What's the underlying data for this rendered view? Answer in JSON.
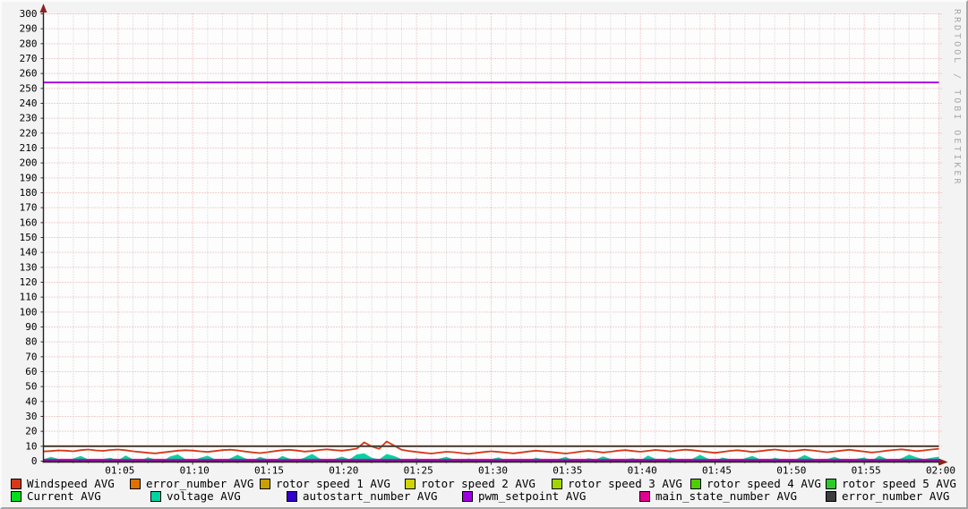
{
  "watermark": "RRDTOOL / TOBI OETIKER",
  "colors": {
    "back": "#f3f3f3",
    "canvas": "#fdfdfd",
    "grid_major": "#e79f9f",
    "grid_minor": "#c9c9c9",
    "axis": "#222222",
    "arrow": "#8c2222",
    "tick_major": "#333333",
    "tick_minor": "#8a8a8a",
    "label_text": "#000000",
    "watermark_text": "#a8a8a8"
  },
  "chart_data": {
    "type": "line",
    "title": "",
    "xlabel": "",
    "ylabel": "",
    "x_axis": {
      "start": "01:00",
      "end": "02:00",
      "major_tick_minutes": 5,
      "minor_tick_minutes": 1,
      "tick_labels": [
        "01:05",
        "01:10",
        "01:15",
        "01:20",
        "01:25",
        "01:30",
        "01:35",
        "01:40",
        "01:45",
        "01:50",
        "01:55",
        "02:00"
      ]
    },
    "y_axis": {
      "min": 0,
      "max": 300,
      "step": 10
    },
    "grid": true,
    "legend_position": "bottom",
    "legend_rows": [
      [
        0,
        1,
        2,
        3,
        4,
        5,
        6
      ],
      [
        7,
        8,
        9,
        10,
        11,
        12
      ]
    ],
    "series": [
      {
        "name": "Windspeed AVG",
        "color": "#d43a17",
        "type": "line",
        "values": [
          6.5,
          6.8,
          7.2,
          7.0,
          6.6,
          7.4,
          7.8,
          7.2,
          6.9,
          7.5,
          7.8,
          7.3,
          6.6,
          6.1,
          5.6,
          5.2,
          5.8,
          6.4,
          7.0,
          7.3,
          7.1,
          6.6,
          6.2,
          6.8,
          7.4,
          7.7,
          7.2,
          6.5,
          5.9,
          5.4,
          6.0,
          6.7,
          7.3,
          7.6,
          7.1,
          6.4,
          6.8,
          7.5,
          7.9,
          7.4,
          7.0,
          7.6,
          8.4,
          12.6,
          9.8,
          8.2,
          13.2,
          10.4,
          7.6,
          6.8,
          6.2,
          5.6,
          5.1,
          5.7,
          6.3,
          6.0,
          5.4,
          4.9,
          5.5,
          6.1,
          6.6,
          6.2,
          5.7,
          5.2,
          5.8,
          6.5,
          7.0,
          6.6,
          6.1,
          5.6,
          5.1,
          5.7,
          6.4,
          6.9,
          6.4,
          5.8,
          6.3,
          7.0,
          7.4,
          6.8,
          6.3,
          6.9,
          7.5,
          7.1,
          6.5,
          7.2,
          7.7,
          7.3,
          6.7,
          6.1,
          5.6,
          6.2,
          6.9,
          7.3,
          6.8,
          6.2,
          6.7,
          7.3,
          7.8,
          7.2,
          6.6,
          7.1,
          7.7,
          7.2,
          6.6,
          6.0,
          6.5,
          7.1,
          7.6,
          7.0,
          6.4,
          5.8,
          6.3,
          7.0,
          7.5,
          7.9,
          7.3,
          6.7,
          7.2,
          7.8,
          8.3
        ]
      },
      {
        "name": "error_number AVG",
        "color": "#e07000",
        "type": "line",
        "value": 10
      },
      {
        "name": "rotor speed 1 AVG",
        "color": "#c8a000",
        "type": "line",
        "value": 0
      },
      {
        "name": "rotor speed 2 AVG",
        "color": "#d0d400",
        "type": "line",
        "value": 0
      },
      {
        "name": "rotor speed 3 AVG",
        "color": "#a0d600",
        "type": "line",
        "value": 0
      },
      {
        "name": "rotor speed 4 AVG",
        "color": "#50cc00",
        "type": "line",
        "value": 0
      },
      {
        "name": "rotor speed 5 AVG",
        "color": "#2cc82c",
        "type": "line",
        "value": 0
      },
      {
        "name": "Current AVG",
        "color": "#00e020",
        "type": "line",
        "values": [
          0.5,
          0.3,
          0.6,
          0.4,
          0.7,
          0.3,
          0.5,
          0.6,
          0.3,
          0.4,
          0.6,
          0.3,
          0.5,
          0.7,
          0.4,
          0.3,
          0.6,
          0.5,
          0.3,
          0.4,
          0.5,
          0.6,
          0.3,
          0.4,
          0.7,
          0.3,
          0.5,
          0.4,
          0.6,
          0.3,
          0.4,
          0.5,
          0.3,
          0.6,
          0.4,
          0.3,
          0.7,
          0.5,
          0.3,
          0.4,
          0.6,
          0.3,
          0.5,
          0.4,
          0.3,
          0.6,
          0.4,
          0.7,
          0.3,
          0.5,
          0.4,
          0.3,
          0.6,
          0.4,
          0.5,
          0.3,
          0.4,
          0.6,
          0.3,
          0.5,
          0.4,
          0.3,
          0.5,
          0.6,
          0.3,
          0.4,
          0.5,
          0.3,
          0.6,
          0.4,
          0.3,
          0.5,
          0.4,
          0.6,
          0.3,
          0.4,
          0.7,
          0.3,
          0.5,
          0.4,
          0.6,
          0.3,
          0.4,
          0.5,
          0.3,
          0.6,
          0.4,
          0.3,
          0.5,
          0.4,
          0.3,
          0.6,
          0.4,
          0.5,
          0.3,
          0.4,
          0.6,
          0.3,
          0.5,
          0.4,
          0.6,
          0.3,
          0.4,
          0.5,
          0.3,
          0.6,
          0.4,
          0.3,
          0.5,
          0.6,
          0.4,
          0.3,
          0.5,
          0.4,
          0.6,
          0.3,
          0.4,
          0.5,
          0.3,
          0.6,
          0.4
        ]
      },
      {
        "name": "voltage AVG",
        "color": "#00d4a0",
        "type": "area",
        "values": [
          1.2,
          2.8,
          1.5,
          0.4,
          1.8,
          3.5,
          1.2,
          0.3,
          1.5,
          2.2,
          0.5,
          3.8,
          1.4,
          0.4,
          2.5,
          1.2,
          0.3,
          3.2,
          4.5,
          1.5,
          0.4,
          2.2,
          3.6,
          1.2,
          0.4,
          1.8,
          4.2,
          2.0,
          0.5,
          2.8,
          1.4,
          0.4,
          3.5,
          1.6,
          0.5,
          2.4,
          4.8,
          1.8,
          0.4,
          1.5,
          3.0,
          1.2,
          4.5,
          5.2,
          2.2,
          1.2,
          4.8,
          3.5,
          1.4,
          0.4,
          2.0,
          0.5,
          0.3,
          1.6,
          2.8,
          1.2,
          0.4,
          1.8,
          0.5,
          0.3,
          1.4,
          2.5,
          0.5,
          0.3,
          1.6,
          0.4,
          2.2,
          1.2,
          0.4,
          1.5,
          2.8,
          0.5,
          0.3,
          1.9,
          1.2,
          3.2,
          1.5,
          0.4,
          1.3,
          2.0,
          0.4,
          3.8,
          1.6,
          0.5,
          2.6,
          1.3,
          0.4,
          1.7,
          4.2,
          1.8,
          0.5,
          2.4,
          1.3,
          0.3,
          1.9,
          3.4,
          1.4,
          0.4,
          2.2,
          1.2,
          0.4,
          1.6,
          4.0,
          1.9,
          0.5,
          1.4,
          2.9,
          1.2,
          0.3,
          1.7,
          2.4,
          0.5,
          3.6,
          1.5,
          0.4,
          2.0,
          4.4,
          2.6,
          1.3,
          2.2,
          3.0
        ]
      },
      {
        "name": "autostart_number AVG",
        "color": "#3300cc",
        "type": "line",
        "value": 0.4
      },
      {
        "name": "pwm_setpoint AVG",
        "color": "#a000e0",
        "type": "line",
        "value": 254
      },
      {
        "name": "main_state_number AVG",
        "color": "#e00090",
        "type": "line",
        "value": 1
      },
      {
        "name": "error_number AVG",
        "color": "#3d3d3d",
        "type": "line",
        "value": 10
      }
    ]
  }
}
